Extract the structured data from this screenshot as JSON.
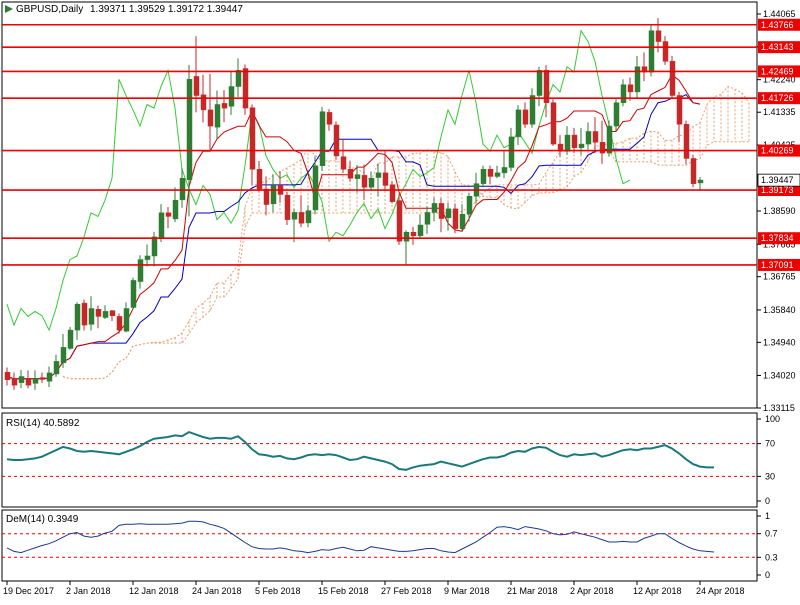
{
  "header": {
    "symbol": "GBPUSD,Daily",
    "ohlc": "1.39371 1.39529 1.39172 1.39447"
  },
  "panes": {
    "rsi_label": "RSI(14) 40.5892",
    "dem_label": "DeM(14) 0.3949"
  },
  "colors": {
    "bull": "#2e7d32",
    "bear": "#c62828",
    "tenkan": "#d00000",
    "kijun": "#0000c0",
    "chikou": "#33cc33",
    "cloud": "#e8a070",
    "level": "#ee0000",
    "osc": "#1a7a7a",
    "dem": "#1c3b8c"
  },
  "chart_data": [
    {
      "type": "candlestick",
      "title": "GBPUSD,Daily",
      "y_ticks": [
        "1.44065",
        "1.43155",
        "1.42240",
        "1.41335",
        "1.40425",
        "1.39505",
        "1.38590",
        "1.37665",
        "1.36765",
        "1.35840",
        "1.34940",
        "1.34020",
        "1.33115"
      ],
      "x_ticks": [
        "19 Dec 2017",
        "2 Jan 2018",
        "12 Jan 2018",
        "24 Jan 2018",
        "5 Feb 2018",
        "15 Feb 2018",
        "27 Feb 2018",
        "9 Mar 2018",
        "21 Mar 2018",
        "2 Apr 2018",
        "12 Apr 2018",
        "24 Apr 2018"
      ],
      "ylim": [
        1.33115,
        1.44065
      ],
      "levels": [
        "1.43766",
        "1.43143",
        "1.42469",
        "1.41726",
        "1.40269",
        "1.39173",
        "1.37834",
        "1.37091"
      ],
      "current_price": "1.39447",
      "candles": [
        [
          1.3411,
          1.339,
          1.3424,
          1.3374
        ],
        [
          1.3393,
          1.3375,
          1.341,
          1.3362
        ],
        [
          1.3382,
          1.3399,
          1.3417,
          1.3367
        ],
        [
          1.3392,
          1.3375,
          1.3416,
          1.3366
        ],
        [
          1.338,
          1.3393,
          1.3416,
          1.3362
        ],
        [
          1.3396,
          1.3391,
          1.341,
          1.3381
        ],
        [
          1.3386,
          1.3409,
          1.3427,
          1.337
        ],
        [
          1.3406,
          1.3441,
          1.346,
          1.3398
        ],
        [
          1.3437,
          1.348,
          1.3517,
          1.3423
        ],
        [
          1.3477,
          1.3528,
          1.3537,
          1.3473
        ],
        [
          1.3528,
          1.36,
          1.3605,
          1.3501
        ],
        [
          1.3603,
          1.3542,
          1.3613,
          1.3527
        ],
        [
          1.3544,
          1.3588,
          1.3622,
          1.3527
        ],
        [
          1.3586,
          1.3566,
          1.3596,
          1.3533
        ],
        [
          1.3563,
          1.358,
          1.3597,
          1.3559
        ],
        [
          1.3582,
          1.3568,
          1.3584,
          1.3553
        ],
        [
          1.3566,
          1.3528,
          1.3574,
          1.3518
        ],
        [
          1.3525,
          1.3588,
          1.3605,
          1.3522
        ],
        [
          1.3591,
          1.3666,
          1.3674,
          1.3587
        ],
        [
          1.3663,
          1.3724,
          1.3736,
          1.3643
        ],
        [
          1.3724,
          1.3734,
          1.3766,
          1.3705
        ],
        [
          1.3734,
          1.3787,
          1.3801,
          1.3705
        ],
        [
          1.3786,
          1.3854,
          1.3878,
          1.3773
        ],
        [
          1.3854,
          1.3844,
          1.387,
          1.3811
        ],
        [
          1.3837,
          1.3889,
          1.3925,
          1.3828
        ],
        [
          1.389,
          1.395,
          1.3978,
          1.3868
        ],
        [
          1.3946,
          1.4225,
          1.4265,
          1.3844
        ],
        [
          1.4233,
          1.418,
          1.4345,
          1.4133
        ],
        [
          1.4182,
          1.414,
          1.4238,
          1.4105
        ],
        [
          1.414,
          1.4095,
          1.424,
          1.403
        ],
        [
          1.4092,
          1.4155,
          1.4194,
          1.4059
        ],
        [
          1.4158,
          1.4145,
          1.4195,
          1.4106
        ],
        [
          1.415,
          1.4205,
          1.4248,
          1.4126
        ],
        [
          1.4205,
          1.425,
          1.4283,
          1.4176
        ],
        [
          1.4255,
          1.4145,
          1.4266,
          1.4126
        ],
        [
          1.4146,
          1.3975,
          1.4155,
          1.393
        ],
        [
          1.3975,
          1.392,
          1.3998,
          1.391
        ],
        [
          1.392,
          1.3877,
          1.3955,
          1.3847
        ],
        [
          1.3879,
          1.393,
          1.3961,
          1.3856
        ],
        [
          1.393,
          1.3905,
          1.397,
          1.3882
        ],
        [
          1.3903,
          1.3835,
          1.3912,
          1.382
        ],
        [
          1.3836,
          1.3855,
          1.3865,
          1.3772
        ],
        [
          1.3855,
          1.3825,
          1.3903,
          1.3814
        ],
        [
          1.3826,
          1.386,
          1.3875,
          1.3814
        ],
        [
          1.3862,
          1.3985,
          1.401,
          1.385
        ],
        [
          1.3985,
          1.4135,
          1.4148,
          1.397
        ],
        [
          1.4133,
          1.41,
          1.4142,
          1.4082
        ],
        [
          1.4098,
          1.4012,
          1.4108,
          1.4001
        ],
        [
          1.401,
          1.3975,
          1.4059,
          1.3965
        ],
        [
          1.3975,
          1.395,
          1.3999,
          1.394
        ],
        [
          1.3949,
          1.396,
          1.3987,
          1.391
        ],
        [
          1.3958,
          1.3925,
          1.3988,
          1.389
        ],
        [
          1.3925,
          1.395,
          1.3969,
          1.3916
        ],
        [
          1.3952,
          1.3965,
          1.399,
          1.39
        ],
        [
          1.3965,
          1.393,
          1.4025,
          1.3915
        ],
        [
          1.3932,
          1.3885,
          1.3942,
          1.388
        ],
        [
          1.3888,
          1.3775,
          1.3905,
          1.3765
        ],
        [
          1.3775,
          1.38,
          1.3805,
          1.3708
        ],
        [
          1.38,
          1.379,
          1.3815,
          1.3765
        ],
        [
          1.379,
          1.382,
          1.385,
          1.3785
        ],
        [
          1.3822,
          1.3855,
          1.3872,
          1.3795
        ],
        [
          1.3855,
          1.388,
          1.3897,
          1.383
        ],
        [
          1.388,
          1.3838,
          1.3895,
          1.38
        ],
        [
          1.384,
          1.3865,
          1.3882,
          1.3804
        ],
        [
          1.3865,
          1.381,
          1.388,
          1.3797
        ],
        [
          1.381,
          1.385,
          1.3878,
          1.3805
        ],
        [
          1.385,
          1.39,
          1.391,
          1.383
        ],
        [
          1.39,
          1.3935,
          1.3965,
          1.388
        ],
        [
          1.3935,
          1.3975,
          1.3985,
          1.3925
        ],
        [
          1.3975,
          1.3955,
          1.3985,
          1.3933
        ],
        [
          1.3955,
          1.3965,
          1.3985,
          1.395
        ],
        [
          1.3965,
          1.398,
          1.4025,
          1.395
        ],
        [
          1.398,
          1.4065,
          1.409,
          1.397
        ],
        [
          1.4065,
          1.414,
          1.4153,
          1.4042
        ],
        [
          1.414,
          1.41,
          1.4161,
          1.409
        ],
        [
          1.41,
          1.418,
          1.42,
          1.409
        ],
        [
          1.418,
          1.425,
          1.426,
          1.415
        ],
        [
          1.425,
          1.416,
          1.4264,
          1.412
        ],
        [
          1.416,
          1.4045,
          1.417,
          1.404
        ],
        [
          1.4045,
          1.4025,
          1.407,
          1.401
        ],
        [
          1.4025,
          1.407,
          1.4095,
          1.4015
        ],
        [
          1.407,
          1.4035,
          1.409,
          1.402
        ],
        [
          1.4035,
          1.4045,
          1.409,
          1.4015
        ],
        [
          1.4045,
          1.408,
          1.4105,
          1.403
        ],
        [
          1.408,
          1.405,
          1.412,
          1.402
        ],
        [
          1.405,
          1.402,
          1.411,
          1.399
        ],
        [
          1.402,
          1.4095,
          1.411,
          1.401
        ],
        [
          1.4095,
          1.416,
          1.417,
          1.408
        ],
        [
          1.416,
          1.421,
          1.4225,
          1.415
        ],
        [
          1.421,
          1.419,
          1.423,
          1.4165
        ],
        [
          1.419,
          1.426,
          1.429,
          1.417
        ],
        [
          1.426,
          1.4245,
          1.43,
          1.422
        ],
        [
          1.4245,
          1.436,
          1.4375,
          1.4233
        ],
        [
          1.436,
          1.433,
          1.4395,
          1.43
        ],
        [
          1.433,
          1.4275,
          1.4345,
          1.4265
        ],
        [
          1.4275,
          1.418,
          1.429,
          1.417
        ],
        [
          1.418,
          1.41,
          1.419,
          1.405
        ],
        [
          1.41,
          1.4005,
          1.411,
          1.399
        ],
        [
          1.4005,
          1.3935,
          1.4015,
          1.3925
        ],
        [
          1.3937,
          1.3945,
          1.3953,
          1.3917
        ]
      ]
    },
    {
      "type": "line",
      "title": "RSI(14) 40.5892",
      "ylim": [
        0,
        100
      ],
      "y_ticks": [
        "100",
        "70",
        "30",
        "0"
      ],
      "levels": [
        70,
        30
      ],
      "values": [
        51,
        50,
        50,
        51,
        52,
        54,
        58,
        62,
        66,
        64,
        61,
        60,
        61,
        60,
        59,
        58,
        57,
        60,
        63,
        67,
        72,
        76,
        77,
        78,
        80,
        79,
        84,
        81,
        78,
        76,
        77,
        77,
        76,
        79,
        72,
        63,
        57,
        56,
        54,
        55,
        52,
        51,
        53,
        56,
        57,
        56,
        57,
        56,
        53,
        50,
        51,
        54,
        52,
        50,
        48,
        45,
        39,
        38,
        41,
        43,
        44,
        45,
        48,
        46,
        44,
        42,
        45,
        48,
        51,
        53,
        53,
        55,
        59,
        61,
        60,
        64,
        66,
        65,
        60,
        56,
        54,
        57,
        56,
        57,
        58,
        54,
        56,
        59,
        62,
        63,
        62,
        64,
        64,
        66,
        68,
        64,
        58,
        51,
        45,
        42,
        41,
        41
      ]
    },
    {
      "type": "line",
      "title": "DeM(14) 0.3949",
      "ylim": [
        0,
        1
      ],
      "y_ticks": [
        "1",
        "0.7",
        "0.3",
        "0"
      ],
      "levels": [
        0.7,
        0.3
      ],
      "values": [
        0.46,
        0.4,
        0.38,
        0.42,
        0.46,
        0.5,
        0.53,
        0.58,
        0.64,
        0.7,
        0.72,
        0.66,
        0.64,
        0.66,
        0.71,
        0.74,
        0.84,
        0.86,
        0.86,
        0.87,
        0.86,
        0.86,
        0.86,
        0.86,
        0.87,
        0.88,
        0.91,
        0.91,
        0.9,
        0.86,
        0.83,
        0.79,
        0.71,
        0.63,
        0.55,
        0.48,
        0.45,
        0.44,
        0.44,
        0.46,
        0.44,
        0.41,
        0.4,
        0.38,
        0.4,
        0.43,
        0.42,
        0.45,
        0.47,
        0.44,
        0.41,
        0.42,
        0.48,
        0.46,
        0.44,
        0.42,
        0.4,
        0.4,
        0.41,
        0.43,
        0.45,
        0.45,
        0.41,
        0.39,
        0.38,
        0.44,
        0.5,
        0.56,
        0.64,
        0.72,
        0.81,
        0.82,
        0.8,
        0.77,
        0.82,
        0.8,
        0.78,
        0.75,
        0.7,
        0.68,
        0.69,
        0.73,
        0.7,
        0.67,
        0.64,
        0.6,
        0.56,
        0.56,
        0.57,
        0.56,
        0.56,
        0.62,
        0.66,
        0.7,
        0.7,
        0.62,
        0.55,
        0.49,
        0.44,
        0.41,
        0.4,
        0.39
      ]
    }
  ]
}
